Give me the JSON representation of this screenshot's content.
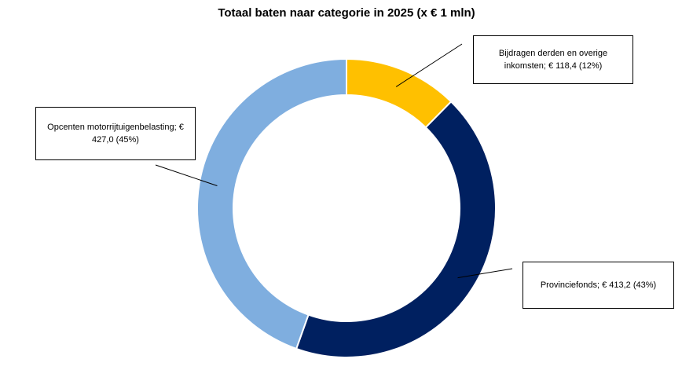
{
  "chart_data": {
    "type": "pie",
    "variant": "donut",
    "title": "Totaal baten naar categorie in 2025 (x € 1 mln)",
    "categories": [
      "Bijdragen derden en overige inkomsten",
      "Provinciefonds",
      "Opcenten motorrijtuigenbelasting"
    ],
    "values": [
      118.4,
      413.2,
      427.0
    ],
    "percentages": [
      12,
      43,
      45
    ],
    "colors": [
      "#FFC000",
      "#002060",
      "#7FAEDF"
    ],
    "data_labels": [
      "Bijdragen derden en overige inkomsten; € 118,4  (12%)",
      "Provinciefonds; € 413,2  (43%)",
      "Opcenten motorrijtuigenbelasting; € 427,0  (45%)"
    ],
    "legend": "none"
  }
}
